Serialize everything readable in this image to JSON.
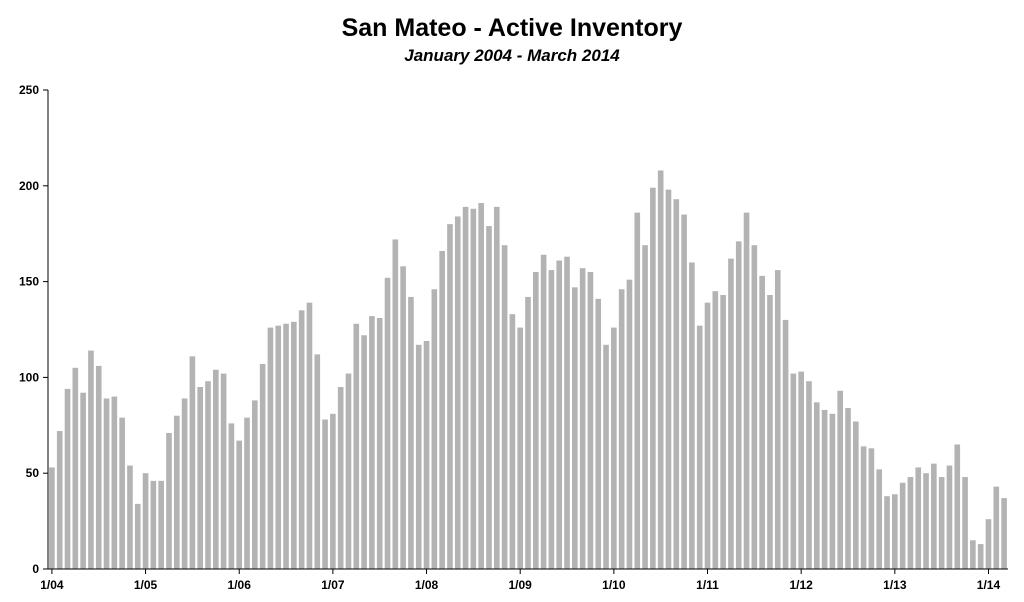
{
  "chart_data": {
    "type": "bar",
    "title": "San Mateo - Active Inventory",
    "subtitle": "January 2004 - March 2014",
    "xlabel": "",
    "ylabel": "",
    "ylim": [
      0,
      250
    ],
    "yticks": [
      "0",
      "50",
      "100",
      "150",
      "200",
      "250"
    ],
    "xticks": [
      "1/04",
      "1/05",
      "1/06",
      "1/07",
      "1/08",
      "1/09",
      "1/10",
      "1/11",
      "1/12",
      "1/13",
      "1/14"
    ],
    "grid": false,
    "legend": "none",
    "bar_color": "#b3b3b3",
    "categories": [
      "2004-01",
      "2004-02",
      "2004-03",
      "2004-04",
      "2004-05",
      "2004-06",
      "2004-07",
      "2004-08",
      "2004-09",
      "2004-10",
      "2004-11",
      "2004-12",
      "2005-01",
      "2005-02",
      "2005-03",
      "2005-04",
      "2005-05",
      "2005-06",
      "2005-07",
      "2005-08",
      "2005-09",
      "2005-10",
      "2005-11",
      "2005-12",
      "2006-01",
      "2006-02",
      "2006-03",
      "2006-04",
      "2006-05",
      "2006-06",
      "2006-07",
      "2006-08",
      "2006-09",
      "2006-10",
      "2006-11",
      "2006-12",
      "2007-01",
      "2007-02",
      "2007-03",
      "2007-04",
      "2007-05",
      "2007-06",
      "2007-07",
      "2007-08",
      "2007-09",
      "2007-10",
      "2007-11",
      "2007-12",
      "2008-01",
      "2008-02",
      "2008-03",
      "2008-04",
      "2008-05",
      "2008-06",
      "2008-07",
      "2008-08",
      "2008-09",
      "2008-10",
      "2008-11",
      "2008-12",
      "2009-01",
      "2009-02",
      "2009-03",
      "2009-04",
      "2009-05",
      "2009-06",
      "2009-07",
      "2009-08",
      "2009-09",
      "2009-10",
      "2009-11",
      "2009-12",
      "2010-01",
      "2010-02",
      "2010-03",
      "2010-04",
      "2010-05",
      "2010-06",
      "2010-07",
      "2010-08",
      "2010-09",
      "2010-10",
      "2010-11",
      "2010-12",
      "2011-01",
      "2011-02",
      "2011-03",
      "2011-04",
      "2011-05",
      "2011-06",
      "2011-07",
      "2011-08",
      "2011-09",
      "2011-10",
      "2011-11",
      "2011-12",
      "2012-01",
      "2012-02",
      "2012-03",
      "2012-04",
      "2012-05",
      "2012-06",
      "2012-07",
      "2012-08",
      "2012-09",
      "2012-10",
      "2012-11",
      "2012-12",
      "2013-01",
      "2013-02",
      "2013-03",
      "2013-04",
      "2013-05",
      "2013-06",
      "2013-07",
      "2013-08",
      "2013-09",
      "2013-10",
      "2013-11",
      "2013-12",
      "2014-01",
      "2014-02",
      "2014-03"
    ],
    "values": [
      53,
      72,
      94,
      105,
      92,
      114,
      106,
      89,
      90,
      79,
      54,
      34,
      50,
      46,
      46,
      71,
      80,
      89,
      111,
      95,
      98,
      104,
      102,
      76,
      67,
      79,
      88,
      107,
      126,
      127,
      128,
      129,
      135,
      139,
      112,
      78,
      81,
      95,
      102,
      128,
      122,
      132,
      131,
      152,
      172,
      158,
      142,
      117,
      119,
      146,
      166,
      180,
      184,
      189,
      188,
      191,
      179,
      189,
      169,
      133,
      126,
      142,
      155,
      164,
      156,
      161,
      163,
      147,
      157,
      155,
      141,
      117,
      126,
      146,
      151,
      186,
      169,
      199,
      208,
      198,
      193,
      185,
      160,
      127,
      139,
      145,
      143,
      162,
      171,
      186,
      169,
      153,
      143,
      156,
      130,
      102,
      103,
      98,
      87,
      83,
      81,
      93,
      84,
      77,
      64,
      63,
      52,
      38,
      39,
      45,
      48,
      53,
      50,
      55,
      48,
      54,
      65,
      48,
      15,
      13,
      26,
      43,
      37
    ]
  }
}
